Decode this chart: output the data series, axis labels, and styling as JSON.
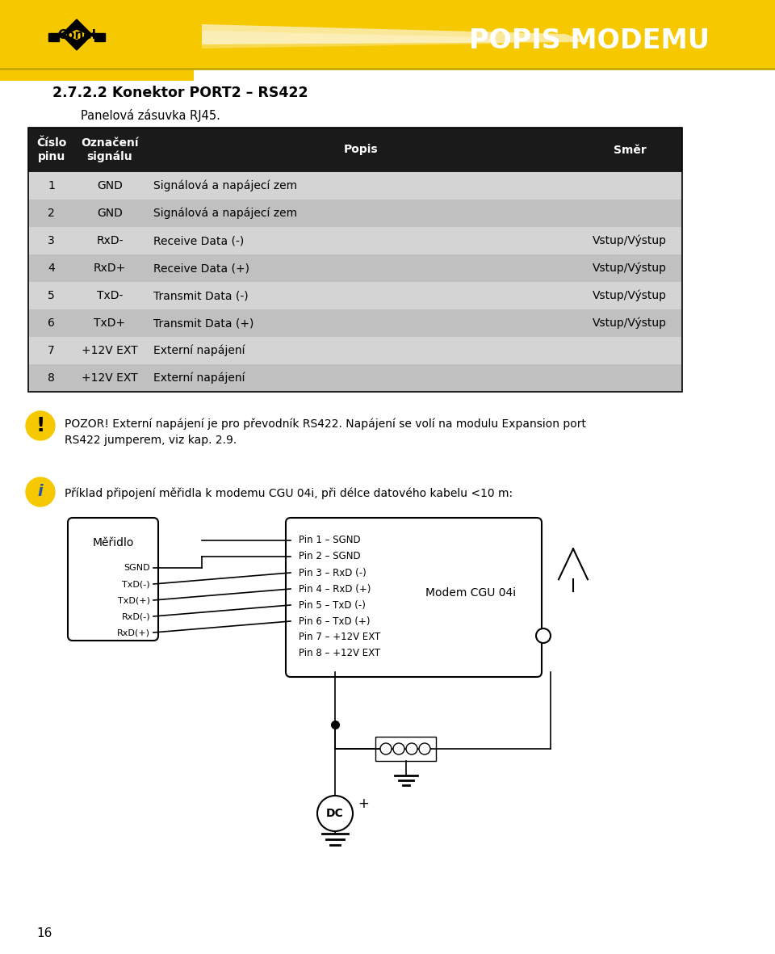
{
  "bg_color": "#ffffff",
  "header_bg": "#f5c800",
  "page_number": "16",
  "header_title": "POPIS MODEMU",
  "section_title": "2.7.2.2 Konektor PORT2 – RS422",
  "subtitle": "Panelová zásuvka RJ45.",
  "table_header_bg": "#1a1a1a",
  "table_header_color": "#ffffff",
  "table_row_odd_bg": "#d4d4d4",
  "table_row_even_bg": "#c0c0c0",
  "table_col_headers": [
    "Číslo\npinu",
    "Označení\nsignálu",
    "Popis",
    "Směr"
  ],
  "table_rows": [
    [
      "1",
      "GND",
      "Signálová a napájecí zem",
      ""
    ],
    [
      "2",
      "GND",
      "Signálová a napájecí zem",
      ""
    ],
    [
      "3",
      "RxD-",
      "Receive Data (-)",
      "Vstup/Výstup"
    ],
    [
      "4",
      "RxD+",
      "Receive Data (+)",
      "Vstup/Výstup"
    ],
    [
      "5",
      "TxD-",
      "Transmit Data (-)",
      "Vstup/Výstup"
    ],
    [
      "6",
      "TxD+",
      "Transmit Data (+)",
      "Vstup/Výstup"
    ],
    [
      "7",
      "+12V EXT",
      "Externí napájení",
      ""
    ],
    [
      "8",
      "+12V EXT",
      "Externí napájení",
      ""
    ]
  ],
  "warning_text": "POZOR! Externí napájení je pro převodník RS422. Napájení se volí na modulu Expansion port\nRS422 jumperem, viz kap. 2.9.",
  "info_text": "Příklad připojení měřidla k modemu CGU 04i, při délce datového kabelu <10 m:",
  "measurer_label": "Měřidlo",
  "measurer_signals": [
    "SGND",
    "TxD(-)",
    "TxD(+)",
    "RxD(-)",
    "RxD(+)"
  ],
  "modem_label": "Modem CGU 04i",
  "modem_pins": [
    "Pin 1 – SGND",
    "Pin 2 – SGND",
    "Pin 3 – RxD (-)",
    "Pin 4 – RxD (+)",
    "Pin 5 – TxD (-)",
    "Pin 6 – TxD (+)",
    "Pin 7 – +12V EXT",
    "Pin 8 – +12V EXT"
  ],
  "dc_label": "DC",
  "plus_label": "+"
}
